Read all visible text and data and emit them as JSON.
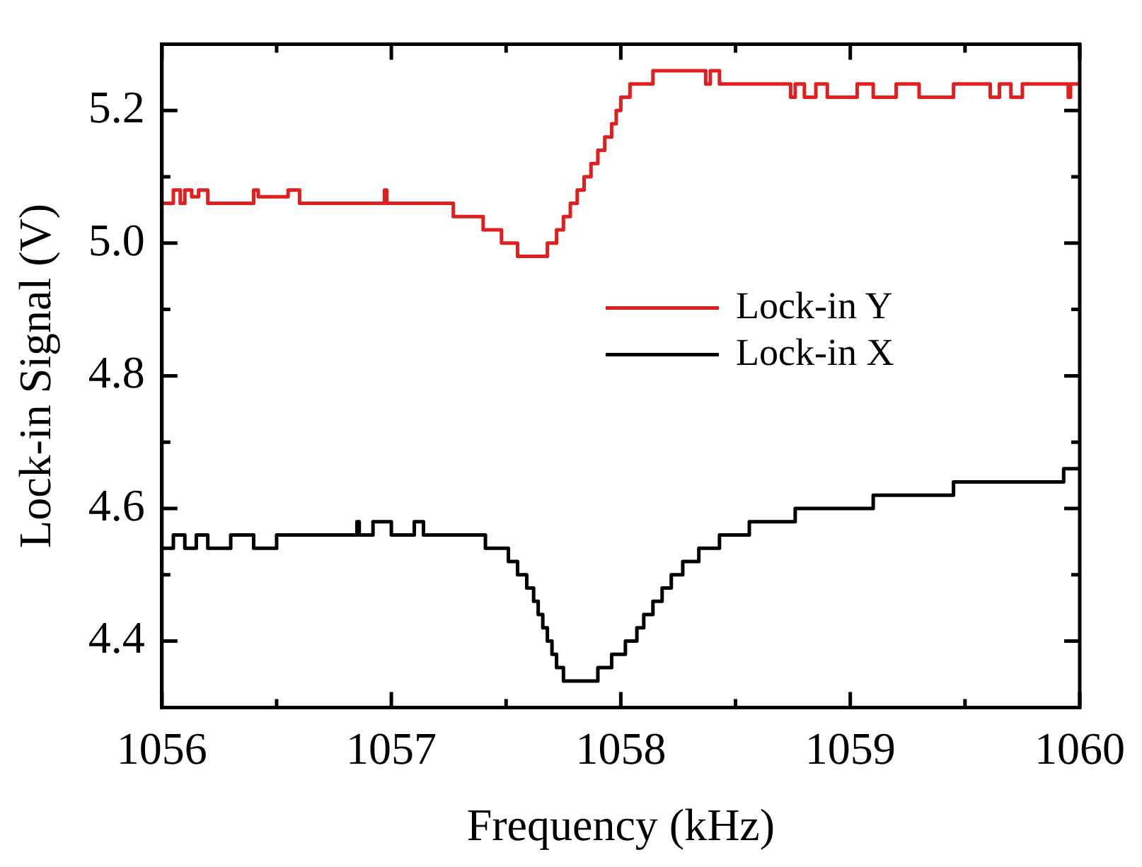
{
  "chart_data": {
    "type": "step",
    "xlabel": "Frequency (kHz)",
    "ylabel": "Lock-in Signal (V)",
    "xlim": [
      1056,
      1060
    ],
    "ylim": [
      4.3,
      5.3
    ],
    "xticks": [
      1056,
      {
        "value": 1056.5,
        "label": null
      },
      1057,
      {
        "value": 1057.5,
        "label": null
      },
      1058,
      {
        "value": 1058.5,
        "label": null
      },
      1059,
      {
        "value": 1059.5,
        "label": null
      },
      1060
    ],
    "yticks": [
      {
        "value": 4.3,
        "label": null
      },
      {
        "value": 4.4,
        "label": "4.4"
      },
      {
        "value": 4.5,
        "label": null
      },
      {
        "value": 4.6,
        "label": "4.6"
      },
      {
        "value": 4.7,
        "label": null
      },
      {
        "value": 4.8,
        "label": "4.8"
      },
      {
        "value": 4.9,
        "label": null
      },
      {
        "value": 5.0,
        "label": "5.0"
      },
      {
        "value": 5.1,
        "label": null
      },
      {
        "value": 5.2,
        "label": "5.2"
      },
      {
        "value": 5.3,
        "label": null
      }
    ],
    "legend": "right",
    "series": [
      {
        "name": "Lock-in Y",
        "color": "#e02020",
        "x": [
          1056,
          1056.05,
          1056.08,
          1056.1,
          1056.13,
          1056.16,
          1056.2,
          1056.4,
          1056.42,
          1056.55,
          1056.6,
          1056.64,
          1056.97,
          1056.98,
          1057.27,
          1057.4,
          1057.48,
          1057.55,
          1057.68,
          1057.72,
          1057.75,
          1057.78,
          1057.81,
          1057.84,
          1057.87,
          1057.9,
          1057.93,
          1057.96,
          1057.98,
          1058.0,
          1058.04,
          1058.14,
          1058.37,
          1058.39,
          1058.43,
          1058.74,
          1058.76,
          1058.8,
          1058.85,
          1058.9,
          1059.0,
          1059.03,
          1059.1,
          1059.2,
          1059.3,
          1059.45,
          1059.61,
          1059.65,
          1059.7,
          1059.75,
          1059.8,
          1059.95,
          1059.96,
          1060
        ],
        "values": [
          5.06,
          5.08,
          5.06,
          5.08,
          5.07,
          5.08,
          5.06,
          5.08,
          5.07,
          5.08,
          5.06,
          5.06,
          5.08,
          5.06,
          5.04,
          5.02,
          5.0,
          4.98,
          5.0,
          5.02,
          5.04,
          5.06,
          5.08,
          5.1,
          5.12,
          5.14,
          5.16,
          5.18,
          5.2,
          5.22,
          5.24,
          5.26,
          5.24,
          5.26,
          5.24,
          5.22,
          5.24,
          5.22,
          5.24,
          5.22,
          5.22,
          5.24,
          5.22,
          5.24,
          5.22,
          5.24,
          5.22,
          5.24,
          5.22,
          5.24,
          5.24,
          5.22,
          5.24,
          5.24
        ]
      },
      {
        "name": "Lock-in X",
        "color": "#000000",
        "x": [
          1056,
          1056.05,
          1056.1,
          1056.15,
          1056.2,
          1056.3,
          1056.4,
          1056.5,
          1056.55,
          1056.85,
          1056.86,
          1056.92,
          1057.0,
          1057.1,
          1057.14,
          1057.41,
          1057.51,
          1057.55,
          1057.59,
          1057.62,
          1057.64,
          1057.66,
          1057.68,
          1057.7,
          1057.72,
          1057.75,
          1057.79,
          1057.9,
          1057.96,
          1058.02,
          1058.07,
          1058.1,
          1058.14,
          1058.18,
          1058.22,
          1058.27,
          1058.34,
          1058.43,
          1058.56,
          1058.76,
          1058.81,
          1059.1,
          1059.17,
          1059.45,
          1059.52,
          1059.93,
          1059.96,
          1060
        ],
        "values": [
          4.54,
          4.56,
          4.54,
          4.56,
          4.54,
          4.56,
          4.54,
          4.56,
          4.56,
          4.58,
          4.56,
          4.58,
          4.56,
          4.58,
          4.56,
          4.54,
          4.52,
          4.5,
          4.48,
          4.46,
          4.44,
          4.42,
          4.4,
          4.38,
          4.36,
          4.34,
          4.34,
          4.36,
          4.38,
          4.4,
          4.42,
          4.44,
          4.46,
          4.48,
          4.5,
          4.52,
          4.54,
          4.56,
          4.58,
          4.6,
          4.6,
          4.62,
          4.62,
          4.64,
          4.64,
          4.66,
          4.66,
          4.66
        ]
      }
    ]
  }
}
